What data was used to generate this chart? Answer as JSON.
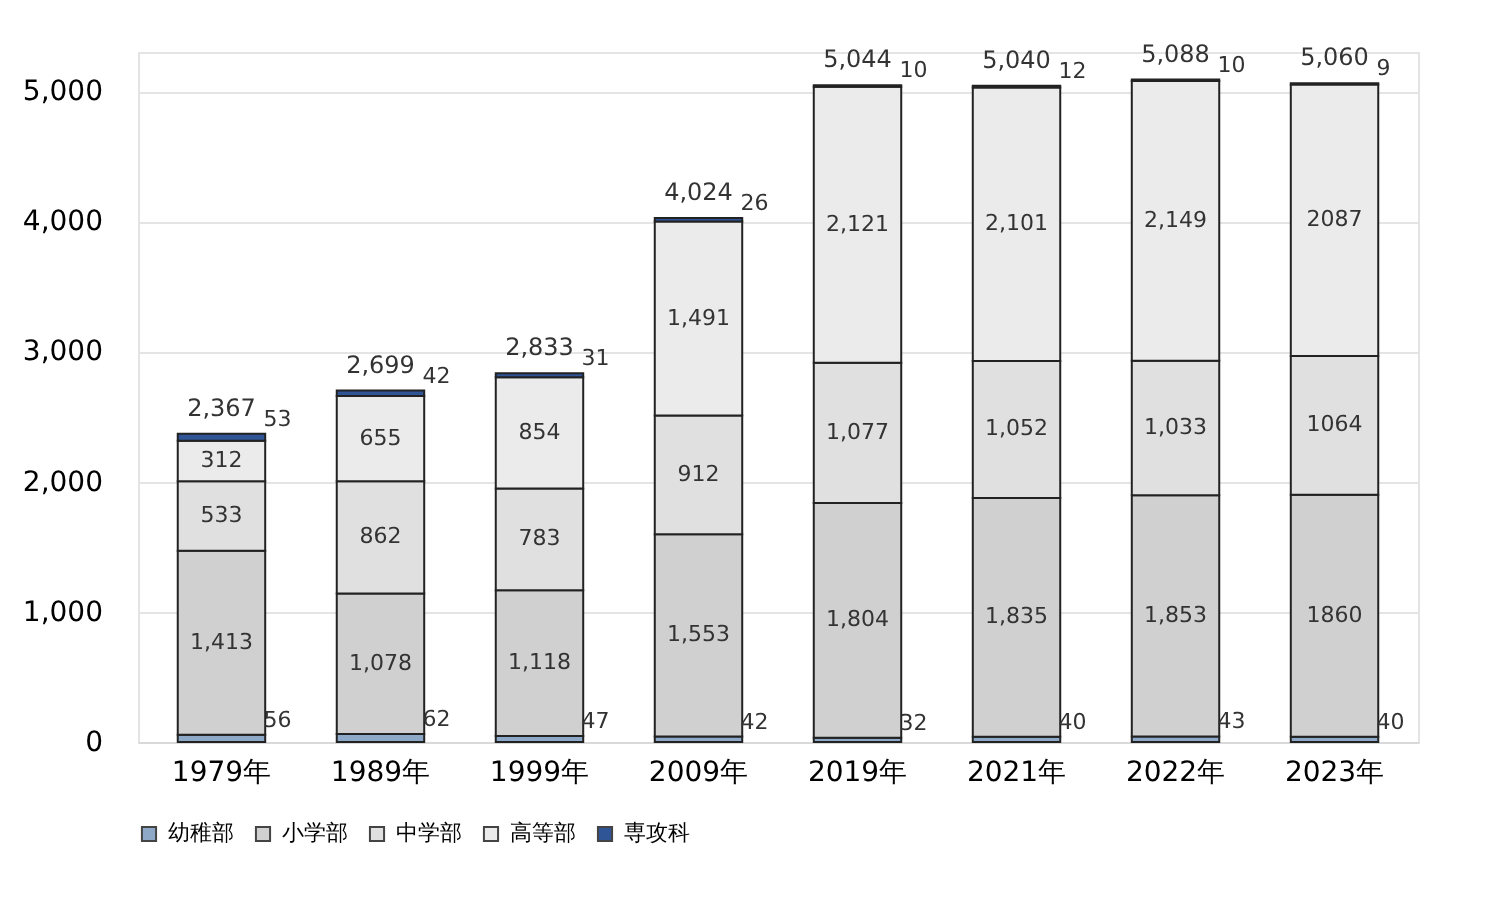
{
  "chart_data": {
    "type": "bar",
    "stacked": true,
    "categories": [
      "1979年",
      "1989年",
      "1999年",
      "2009年",
      "2019年",
      "2021年",
      "2022年",
      "2023年"
    ],
    "series": [
      {
        "name": "幼稚部",
        "color": "#8ea9c8",
        "values": [
          56,
          62,
          47,
          42,
          32,
          40,
          43,
          40
        ],
        "value_labels": [
          "56",
          "62",
          "47",
          "42",
          "32",
          "40",
          "43",
          "40"
        ]
      },
      {
        "name": "小学部",
        "color": "#d0d0d0",
        "values": [
          1413,
          1078,
          1118,
          1553,
          1804,
          1835,
          1853,
          1860
        ],
        "value_labels": [
          "1,413",
          "1,078",
          "1,118",
          "1,553",
          "1,804",
          "1,835",
          "1,853",
          "1860"
        ]
      },
      {
        "name": "中学部",
        "color": "#e0e0e0",
        "values": [
          533,
          862,
          783,
          912,
          1077,
          1052,
          1033,
          1064
        ],
        "value_labels": [
          "533",
          "862",
          "783",
          "912",
          "1,077",
          "1,052",
          "1,033",
          "1064"
        ]
      },
      {
        "name": "高等部",
        "color": "#ebebeb",
        "values": [
          312,
          655,
          854,
          1491,
          2121,
          2101,
          2149,
          2087
        ],
        "value_labels": [
          "312",
          "655",
          "854",
          "1,491",
          "2,121",
          "2,101",
          "2,149",
          "2087"
        ]
      },
      {
        "name": "専攻科",
        "color": "#2f5597",
        "values": [
          53,
          42,
          31,
          26,
          10,
          12,
          10,
          9
        ],
        "value_labels": [
          "53",
          "42",
          "31",
          "26",
          "10",
          "12",
          "10",
          "9"
        ]
      }
    ],
    "totals": [
      "2,367",
      "2,699",
      "2,833",
      "4,024",
      "5,044",
      "5,040",
      "5,088",
      "5,060"
    ],
    "ylim": [
      0,
      5300
    ],
    "yticks": [
      0,
      {
        "value": 1000,
        "label": "1,000"
      },
      {
        "value": 2000,
        "label": "2,000"
      },
      {
        "value": 3000,
        "label": "3,000"
      },
      {
        "value": 4000,
        "label": "4,000"
      },
      {
        "value": 5000,
        "label": "5,000"
      }
    ],
    "grid": "y",
    "legend": "bottom"
  }
}
